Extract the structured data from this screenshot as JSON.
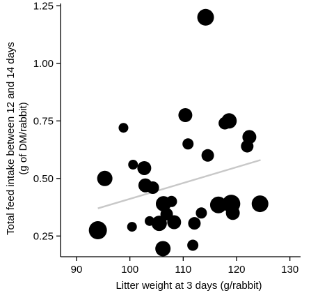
{
  "chart_data": {
    "type": "scatter",
    "title": "",
    "xlabel": "Litter weight at 3 days (g/rabbit)",
    "ylabel_lines": [
      "Total feed intake between 12 and 14 days",
      "(g of DM/rabbit)"
    ],
    "xlim": [
      87,
      132
    ],
    "ylim": [
      0.16,
      1.26
    ],
    "x_ticks": [
      90,
      100,
      110,
      120,
      130
    ],
    "y_ticks": [
      0.25,
      0.5,
      0.75,
      1.0,
      1.25
    ],
    "y_tick_labels": [
      "0.25",
      "0.50",
      "0.75",
      "1.00",
      "1.25"
    ],
    "grid": false,
    "point_color": "#000000",
    "trend_color": "#c8c8c8",
    "trendline": {
      "x": [
        94,
        124.5
      ],
      "y": [
        0.37,
        0.58
      ]
    },
    "points": [
      {
        "x": 114.2,
        "y": 1.2,
        "r": 12
      },
      {
        "x": 98.8,
        "y": 0.72,
        "r": 7
      },
      {
        "x": 110.4,
        "y": 0.775,
        "r": 10
      },
      {
        "x": 118.6,
        "y": 0.75,
        "r": 11
      },
      {
        "x": 117.8,
        "y": 0.74,
        "r": 9
      },
      {
        "x": 122.4,
        "y": 0.68,
        "r": 10
      },
      {
        "x": 122.0,
        "y": 0.64,
        "r": 9
      },
      {
        "x": 110.9,
        "y": 0.65,
        "r": 8
      },
      {
        "x": 114.6,
        "y": 0.6,
        "r": 9
      },
      {
        "x": 100.6,
        "y": 0.56,
        "r": 7
      },
      {
        "x": 102.7,
        "y": 0.545,
        "r": 10
      },
      {
        "x": 95.3,
        "y": 0.5,
        "r": 11
      },
      {
        "x": 102.9,
        "y": 0.47,
        "r": 10
      },
      {
        "x": 104.3,
        "y": 0.46,
        "r": 9
      },
      {
        "x": 107.8,
        "y": 0.4,
        "r": 8
      },
      {
        "x": 106.3,
        "y": 0.39,
        "r": 11
      },
      {
        "x": 116.6,
        "y": 0.385,
        "r": 12
      },
      {
        "x": 119.0,
        "y": 0.39,
        "r": 13
      },
      {
        "x": 124.4,
        "y": 0.39,
        "r": 12
      },
      {
        "x": 106.9,
        "y": 0.345,
        "r": 9
      },
      {
        "x": 113.4,
        "y": 0.35,
        "r": 8
      },
      {
        "x": 119.3,
        "y": 0.35,
        "r": 10
      },
      {
        "x": 103.7,
        "y": 0.315,
        "r": 7
      },
      {
        "x": 105.5,
        "y": 0.305,
        "r": 11
      },
      {
        "x": 108.3,
        "y": 0.31,
        "r": 10
      },
      {
        "x": 112.1,
        "y": 0.305,
        "r": 9
      },
      {
        "x": 100.4,
        "y": 0.29,
        "r": 7
      },
      {
        "x": 94.0,
        "y": 0.275,
        "r": 13
      },
      {
        "x": 106.2,
        "y": 0.195,
        "r": 11
      },
      {
        "x": 111.8,
        "y": 0.21,
        "r": 8
      }
    ]
  }
}
